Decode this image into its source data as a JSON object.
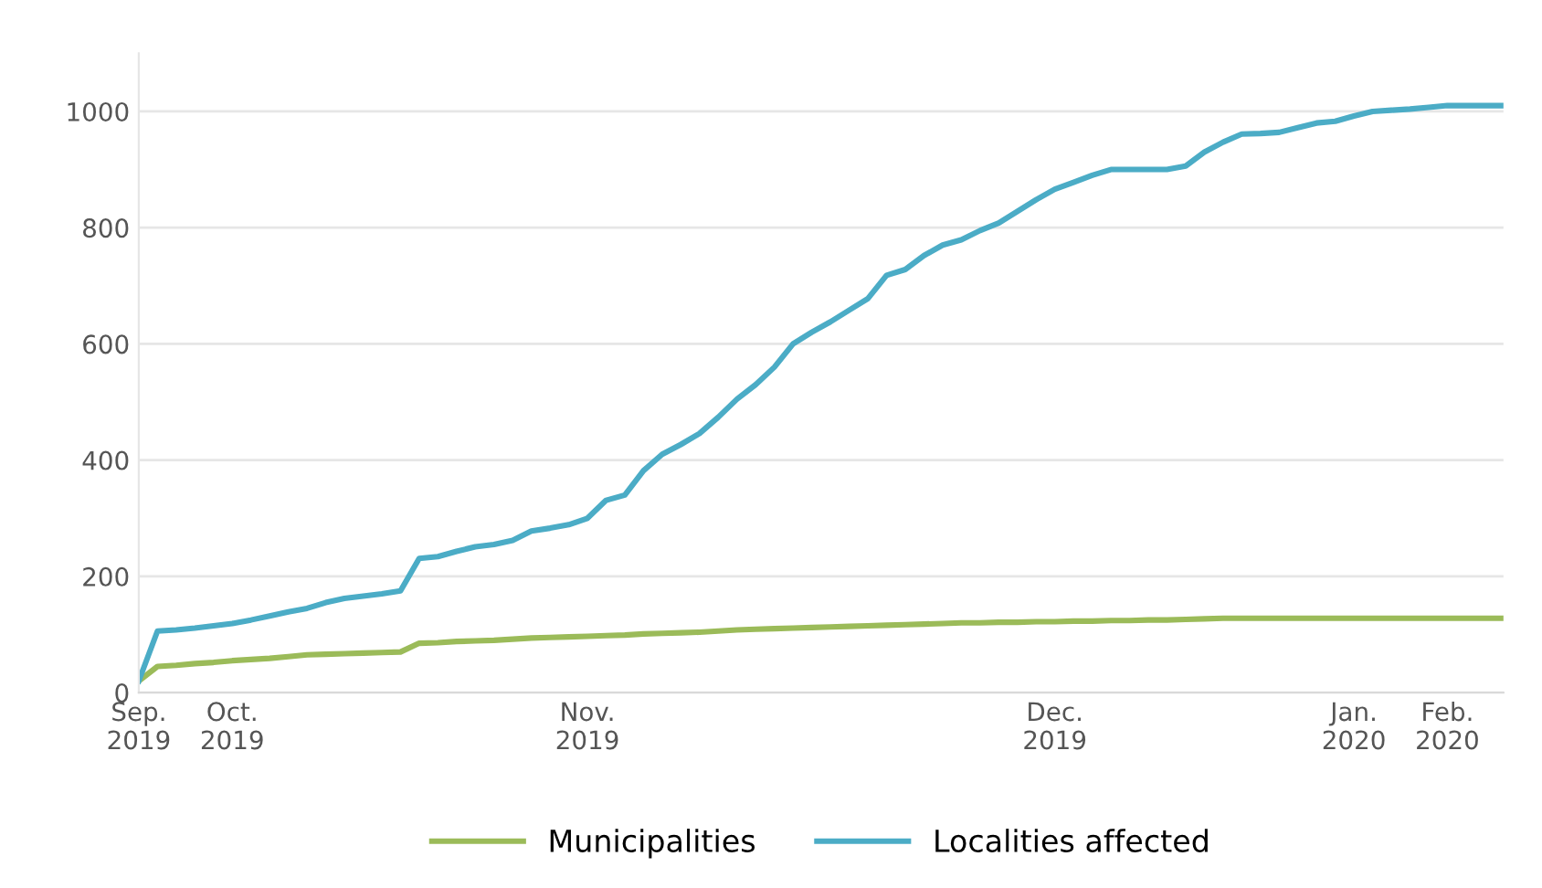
{
  "chart_data": {
    "type": "line",
    "ylim": [
      0,
      1100
    ],
    "yticks": [
      0,
      200,
      400,
      600,
      800,
      1000
    ],
    "categories": [
      "Sep.\n2019",
      null,
      null,
      null,
      null,
      "Oct.\n2019",
      null,
      null,
      null,
      null,
      null,
      null,
      null,
      null,
      null,
      null,
      null,
      null,
      null,
      null,
      null,
      null,
      null,
      null,
      "Nov.\n2019",
      null,
      null,
      null,
      null,
      null,
      null,
      null,
      null,
      null,
      null,
      null,
      null,
      null,
      null,
      null,
      null,
      null,
      null,
      null,
      null,
      null,
      null,
      null,
      null,
      "Dec.\n2019",
      null,
      null,
      null,
      null,
      null,
      null,
      null,
      null,
      null,
      null,
      null,
      null,
      null,
      null,
      null,
      "Jan.\n2020",
      null,
      null,
      null,
      null,
      "Feb.\n2020",
      null,
      null,
      null
    ],
    "grid": "y",
    "legend": "bottom",
    "marker": "none",
    "line_style": "solid",
    "series": [
      {
        "name": "Municipalities",
        "color": "#9bbb59",
        "values": [
          20,
          45,
          47,
          50,
          52,
          55,
          57,
          59,
          62,
          65,
          66,
          67,
          68,
          69,
          70,
          85,
          86,
          88,
          89,
          90,
          92,
          94,
          95,
          96,
          97,
          98,
          99,
          101,
          102,
          103,
          104,
          106,
          108,
          109,
          110,
          111,
          112,
          113,
          114,
          115,
          116,
          117,
          118,
          119,
          120,
          120,
          121,
          121,
          122,
          122,
          123,
          123,
          124,
          124,
          125,
          125,
          126,
          127,
          128,
          128,
          128,
          128,
          128,
          128,
          128,
          128,
          128,
          128,
          128,
          128,
          128,
          128,
          128,
          128
        ]
      },
      {
        "name": "Localities affected",
        "color": "#4bacc6",
        "values": [
          20,
          106,
          108,
          111,
          115,
          119,
          125,
          132,
          139,
          145,
          155,
          162,
          166,
          170,
          175,
          231,
          234,
          243,
          251,
          255,
          262,
          278,
          283,
          289,
          300,
          331,
          340,
          382,
          410,
          427,
          446,
          474,
          505,
          530,
          560,
          600,
          620,
          638,
          658,
          678,
          718,
          728,
          752,
          770,
          779,
          795,
          808,
          828,
          848,
          866,
          878,
          890,
          900,
          900,
          900,
          900,
          906,
          930,
          947,
          961,
          962,
          964,
          972,
          980,
          983,
          992,
          1000,
          1002,
          1004,
          1007,
          1010,
          1010,
          1010,
          1010
        ]
      }
    ]
  }
}
